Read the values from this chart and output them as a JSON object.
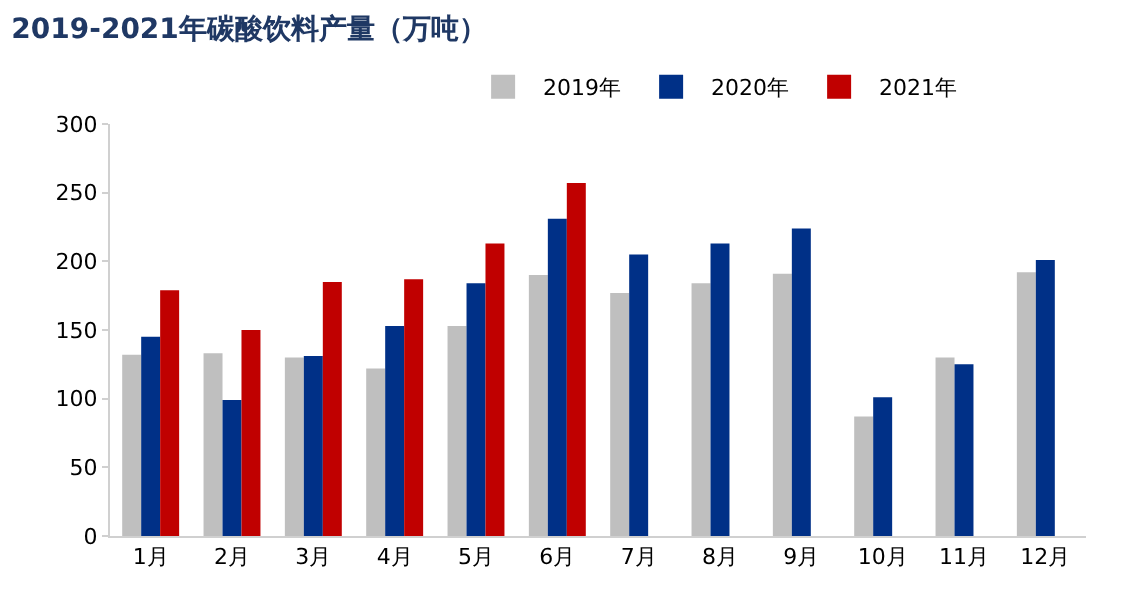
{
  "chart_data": {
    "type": "bar",
    "title": "2019-2021年碳酸饮料产量（万吨）",
    "categories": [
      "1月",
      "2月",
      "3月",
      "4月",
      "5月",
      "6月",
      "7月",
      "8月",
      "9月",
      "10月",
      "11月",
      "12月"
    ],
    "series": [
      {
        "name": "2019年",
        "color": "#bfbfbf",
        "values": [
          132,
          133,
          130,
          122,
          153,
          190,
          177,
          184,
          191,
          87,
          130,
          192
        ]
      },
      {
        "name": "2020年",
        "color": "#003087",
        "values": [
          145,
          99,
          131,
          153,
          184,
          231,
          205,
          213,
          224,
          101,
          125,
          201
        ]
      },
      {
        "name": "2021年",
        "color": "#c00000",
        "values": [
          179,
          150,
          185,
          187,
          213,
          257,
          null,
          null,
          null,
          null,
          null,
          null
        ]
      }
    ],
    "ylim": [
      0,
      300
    ],
    "yticks": [
      0,
      50,
      100,
      150,
      200,
      250,
      300
    ],
    "legend": "top"
  }
}
